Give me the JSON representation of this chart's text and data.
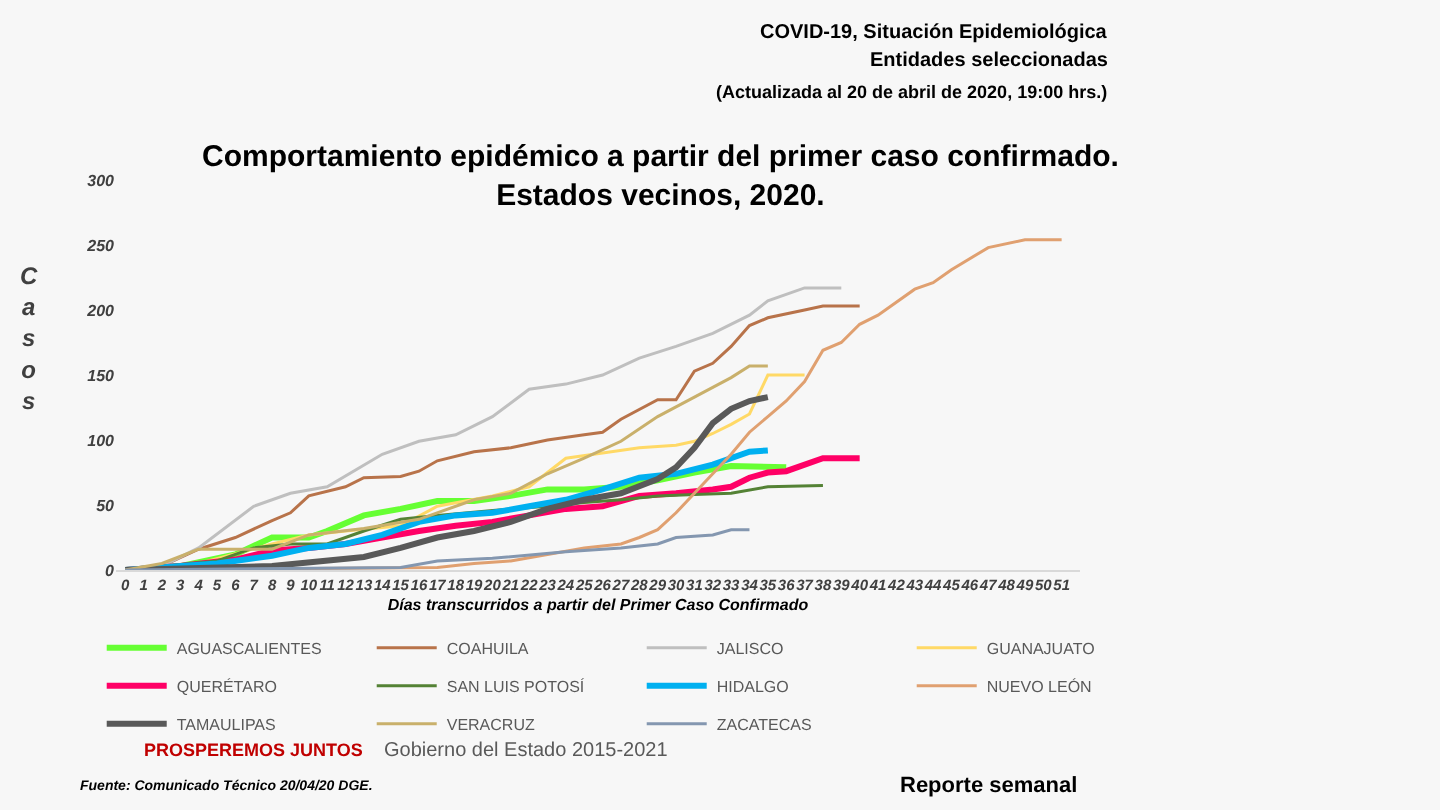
{
  "chart_data": {
    "type": "line",
    "title": "Comportamiento epidémico a partir del primer caso confirmado.\nEstados vecinos, 2020.",
    "xlabel": "Días transcurridos a partir del Primer Caso Confirmado",
    "ylabel": "Casos",
    "annotations": [
      "COVID-19, Situación Epidemiológica",
      "Entidades seleccionadas",
      "(Actualizada al 20 de abril de 2020, 19:00 hrs.)",
      "PROSPEREMOS JUNTOS",
      "Gobierno del Estado 2015-2021",
      "Fuente: Comunicado Técnico 20/04/20 DGE.",
      "Reporte semanal"
    ],
    "xlim": [
      -0.5,
      52
    ],
    "xticks": [
      0,
      1,
      2,
      3,
      4,
      5,
      6,
      7,
      8,
      9,
      10,
      11,
      12,
      13,
      14,
      15,
      16,
      17,
      18,
      19,
      20,
      21,
      22,
      23,
      24,
      25,
      26,
      27,
      28,
      29,
      30,
      31,
      32,
      33,
      34,
      35,
      36,
      37,
      38,
      39,
      40,
      41,
      42,
      43,
      44,
      45,
      46,
      47,
      48,
      49,
      50,
      51
    ],
    "ylim": [
      0,
      300
    ],
    "yticks": [
      0,
      50,
      100,
      150,
      200,
      250,
      300
    ],
    "grid": false,
    "legend": "bottom",
    "marker": "none",
    "line_style": "solid",
    "series": [
      {
        "name": "AGUASCALIENTES",
        "color": "#66ff33",
        "x": [
          0,
          3,
          6,
          8,
          10,
          11,
          13,
          15,
          17,
          19,
          21,
          23,
          25,
          27,
          29,
          31,
          33,
          36
        ],
        "values": [
          0,
          3,
          12,
          25,
          25,
          30,
          42,
          47,
          53,
          53,
          57,
          62,
          62,
          64,
          69,
          75,
          80,
          79
        ]
      },
      {
        "name": "COAHUILA",
        "color": "#b8734a",
        "x": [
          0,
          2,
          4,
          6,
          8,
          9,
          10,
          12,
          13,
          15,
          16,
          17,
          19,
          21,
          23,
          25,
          26,
          27,
          29,
          30,
          31,
          32,
          33,
          34,
          35,
          37,
          38,
          40
        ],
        "values": [
          0,
          3,
          16,
          25,
          38,
          44,
          57,
          64,
          71,
          72,
          76,
          84,
          91,
          94,
          100,
          104,
          106,
          116,
          131,
          131,
          153,
          159,
          172,
          188,
          194,
          200,
          203,
          203
        ]
      },
      {
        "name": "JALISCO",
        "color": "#bfbfbf",
        "x": [
          0,
          2,
          4,
          7,
          9,
          11,
          14,
          16,
          18,
          20,
          22,
          24,
          26,
          28,
          30,
          32,
          34,
          35,
          37,
          39
        ],
        "values": [
          0,
          3,
          17,
          49,
          59,
          64,
          89,
          99,
          104,
          118,
          139,
          143,
          150,
          163,
          172,
          182,
          196,
          207,
          217,
          217
        ]
      },
      {
        "name": "GUANAJUATO",
        "color": "#ffd966",
        "x": [
          0,
          4,
          8,
          10,
          12,
          15,
          17,
          20,
          22,
          24,
          26,
          28,
          30,
          31,
          32,
          33,
          34,
          35,
          37
        ],
        "values": [
          0,
          5,
          20,
          27,
          30,
          34,
          49,
          57,
          64,
          86,
          90,
          94,
          96,
          99,
          105,
          112,
          120,
          150,
          150
        ]
      },
      {
        "name": "QUERÉTARO",
        "color": "#ff0066",
        "x": [
          0,
          3,
          6,
          8,
          10,
          12,
          14,
          16,
          18,
          20,
          22,
          24,
          26,
          28,
          30,
          32,
          33,
          34,
          35,
          36,
          38,
          40
        ],
        "values": [
          0,
          3,
          8,
          15,
          17,
          20,
          25,
          30,
          34,
          37,
          42,
          47,
          49,
          57,
          59,
          62,
          64,
          71,
          75,
          76,
          86,
          86
        ]
      },
      {
        "name": "SAN LUIS POTOSÍ",
        "color": "#548235",
        "x": [
          0,
          5,
          7,
          9,
          11,
          13,
          15,
          17,
          21,
          23,
          25,
          27,
          29,
          31,
          33,
          35,
          38
        ],
        "values": [
          0,
          7,
          17,
          20,
          20,
          30,
          39,
          42,
          47,
          49,
          52,
          54,
          57,
          58,
          59,
          64,
          65
        ]
      },
      {
        "name": "HIDALGO",
        "color": "#00b0f0",
        "x": [
          0,
          5,
          8,
          10,
          12,
          14,
          16,
          18,
          20,
          22,
          24,
          26,
          28,
          30,
          32,
          34,
          35
        ],
        "values": [
          0,
          5,
          11,
          17,
          20,
          27,
          37,
          42,
          44,
          49,
          54,
          62,
          71,
          74,
          81,
          91,
          92
        ]
      },
      {
        "name": "NUEVO LEÓN",
        "color": "#e0a070",
        "x": [
          0,
          17,
          19,
          21,
          23,
          25,
          27,
          28,
          29,
          30,
          31,
          32,
          33,
          34,
          35,
          36,
          37,
          38,
          39,
          40,
          41,
          43,
          44,
          45,
          47,
          49,
          51
        ],
        "values": [
          0,
          2,
          5,
          7,
          12,
          17,
          20,
          25,
          31,
          44,
          59,
          74,
          89,
          106,
          118,
          130,
          145,
          169,
          175,
          189,
          196,
          216,
          221,
          231,
          248,
          254,
          254
        ]
      },
      {
        "name": "TAMAULIPAS",
        "color": "#595959",
        "x": [
          0,
          8,
          13,
          15,
          17,
          19,
          21,
          23,
          25,
          27,
          29,
          30,
          31,
          32,
          33,
          34,
          35
        ],
        "values": [
          0,
          3,
          10,
          17,
          25,
          30,
          37,
          47,
          54,
          59,
          70,
          79,
          94,
          113,
          124,
          130,
          133
        ]
      },
      {
        "name": "VERACRUZ",
        "color": "#c9b06b",
        "x": [
          0,
          2,
          4,
          8,
          10,
          13,
          16,
          19,
          21,
          23,
          25,
          27,
          29,
          31,
          33,
          34,
          35
        ],
        "values": [
          0,
          5,
          16,
          16,
          27,
          32,
          39,
          54,
          59,
          74,
          86,
          99,
          118,
          133,
          148,
          157,
          157
        ]
      },
      {
        "name": "ZACATECAS",
        "color": "#8497b0",
        "x": [
          0,
          15,
          17,
          20,
          24,
          27,
          29,
          30,
          32,
          33,
          34
        ],
        "values": [
          0,
          2,
          7,
          9,
          14,
          17,
          20,
          25,
          27,
          31,
          31
        ]
      }
    ]
  }
}
